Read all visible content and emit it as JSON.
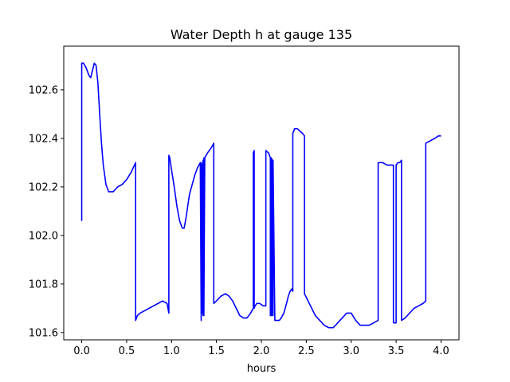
{
  "chart_data": {
    "type": "line",
    "title": "Water Depth h at gauge 135",
    "xlabel": "hours",
    "ylabel": "",
    "xlim": [
      -0.2,
      4.2
    ],
    "ylim": [
      101.57,
      102.78
    ],
    "xticks": [
      0.0,
      0.5,
      1.0,
      1.5,
      2.0,
      2.5,
      3.0,
      3.5,
      4.0
    ],
    "xtick_labels": [
      "0.0",
      "0.5",
      "1.0",
      "1.5",
      "2.0",
      "2.5",
      "3.0",
      "3.5",
      "4.0"
    ],
    "yticks": [
      101.6,
      101.8,
      102.0,
      102.2,
      102.4,
      102.6
    ],
    "ytick_labels": [
      "101.6",
      "101.8",
      "102.0",
      "102.2",
      "102.4",
      "102.6"
    ],
    "grid": false,
    "legend": "none",
    "series": [
      {
        "color": "#0000ff",
        "x": [
          0.0,
          0.0,
          0.02,
          0.05,
          0.08,
          0.1,
          0.12,
          0.14,
          0.16,
          0.18,
          0.2,
          0.22,
          0.24,
          0.27,
          0.3,
          0.35,
          0.4,
          0.45,
          0.5,
          0.55,
          0.6,
          0.6,
          0.62,
          0.65,
          0.7,
          0.75,
          0.8,
          0.85,
          0.9,
          0.95,
          0.97,
          0.97,
          0.98,
          1.0,
          1.03,
          1.06,
          1.09,
          1.12,
          1.14,
          1.16,
          1.18,
          1.2,
          1.23,
          1.26,
          1.29,
          1.32,
          1.33,
          1.33,
          1.34,
          1.34,
          1.35,
          1.35,
          1.36,
          1.36,
          1.37,
          1.4,
          1.44,
          1.47,
          1.47,
          1.5,
          1.55,
          1.6,
          1.64,
          1.68,
          1.72,
          1.76,
          1.8,
          1.84,
          1.88,
          1.91,
          1.91,
          1.92,
          1.92,
          1.93,
          1.93,
          1.95,
          1.98,
          2.02,
          2.05,
          2.05,
          2.08,
          2.1,
          2.1,
          2.11,
          2.11,
          2.12,
          2.12,
          2.13,
          2.13,
          2.15,
          2.18,
          2.2,
          2.22,
          2.25,
          2.28,
          2.3,
          2.32,
          2.34,
          2.35,
          2.35,
          2.37,
          2.4,
          2.43,
          2.46,
          2.48,
          2.48,
          2.52,
          2.56,
          2.6,
          2.65,
          2.7,
          2.75,
          2.8,
          2.85,
          2.9,
          2.95,
          3.0,
          3.05,
          3.1,
          3.15,
          3.2,
          3.25,
          3.3,
          3.3,
          3.35,
          3.4,
          3.45,
          3.47,
          3.47,
          3.5,
          3.5,
          3.52,
          3.54,
          3.56,
          3.56,
          3.6,
          3.65,
          3.7,
          3.75,
          3.8,
          3.83,
          3.83,
          3.88,
          3.93,
          3.97,
          4.0
        ],
        "y": [
          102.06,
          102.71,
          102.71,
          102.69,
          102.66,
          102.65,
          102.68,
          102.71,
          102.7,
          102.63,
          102.5,
          102.38,
          102.29,
          102.21,
          102.18,
          102.18,
          102.2,
          102.21,
          102.23,
          102.26,
          102.3,
          101.65,
          101.67,
          101.68,
          101.69,
          101.7,
          101.71,
          101.72,
          101.73,
          101.72,
          101.68,
          102.33,
          102.32,
          102.27,
          102.2,
          102.12,
          102.06,
          102.03,
          102.03,
          102.07,
          102.12,
          102.17,
          102.21,
          102.25,
          102.28,
          102.3,
          101.65,
          102.3,
          102.29,
          101.68,
          102.31,
          101.67,
          102.32,
          101.67,
          102.32,
          102.34,
          102.36,
          102.38,
          101.72,
          101.73,
          101.75,
          101.76,
          101.75,
          101.73,
          101.7,
          101.67,
          101.66,
          101.66,
          101.68,
          101.7,
          102.34,
          102.35,
          101.7,
          101.71,
          101.71,
          101.72,
          101.72,
          101.71,
          101.71,
          102.35,
          102.34,
          102.32,
          101.67,
          101.67,
          102.32,
          102.31,
          101.67,
          101.67,
          102.31,
          101.65,
          101.65,
          101.65,
          101.66,
          101.68,
          101.72,
          101.75,
          101.77,
          101.78,
          101.77,
          102.42,
          102.44,
          102.44,
          102.43,
          102.42,
          102.41,
          101.76,
          101.73,
          101.7,
          101.67,
          101.65,
          101.63,
          101.62,
          101.62,
          101.64,
          101.66,
          101.68,
          101.68,
          101.65,
          101.63,
          101.63,
          101.63,
          101.64,
          101.65,
          102.3,
          102.3,
          102.29,
          102.29,
          102.29,
          101.64,
          101.64,
          102.29,
          102.3,
          102.3,
          102.31,
          101.65,
          101.66,
          101.68,
          101.7,
          101.71,
          101.72,
          101.73,
          102.38,
          102.39,
          102.4,
          102.41,
          102.41
        ]
      }
    ]
  }
}
